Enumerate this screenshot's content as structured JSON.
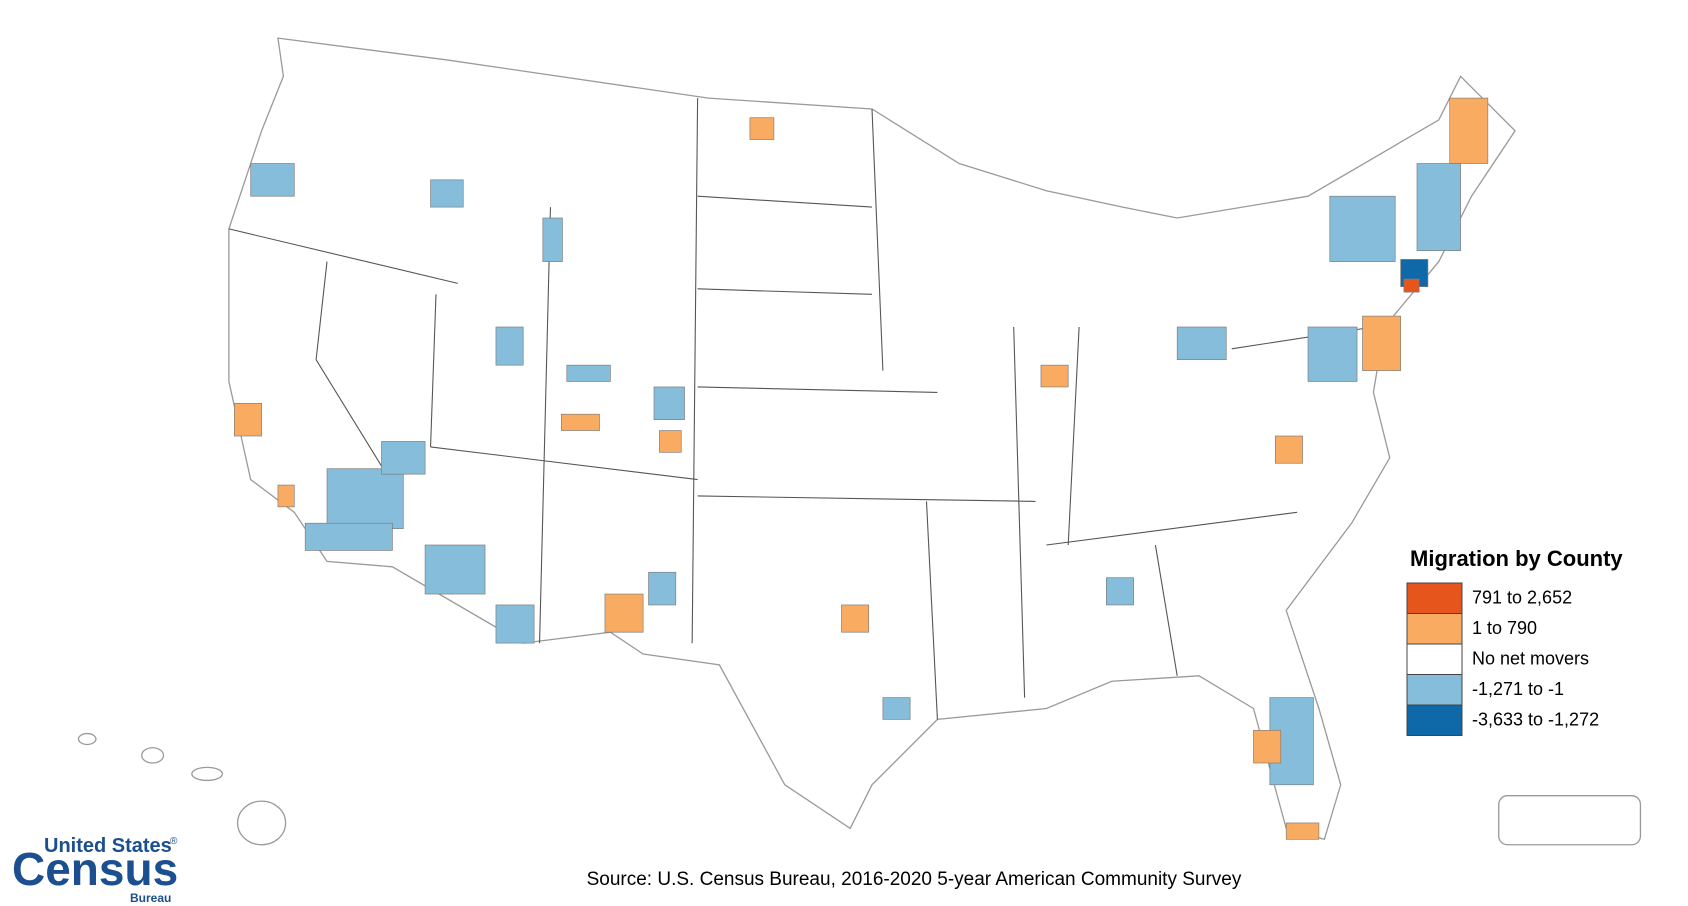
{
  "legend": {
    "title": "Migration by County",
    "items": [
      {
        "label": "791 to 2,652",
        "color": "#e6561c"
      },
      {
        "label": "1 to 790",
        "color": "#f9ab62"
      },
      {
        "label": "No net movers",
        "color": "#ffffff"
      },
      {
        "label": "-1,271 to -1",
        "color": "#86bddb"
      },
      {
        "label": "-3,633 to -1,272",
        "color": "#0f68a8"
      }
    ]
  },
  "source": "Source: U.S. Census Bureau, 2016-2020 5-year American Community Survey",
  "logo": {
    "top": "United States",
    "mark": "®",
    "main": "Census",
    "sub": "Bureau"
  }
}
